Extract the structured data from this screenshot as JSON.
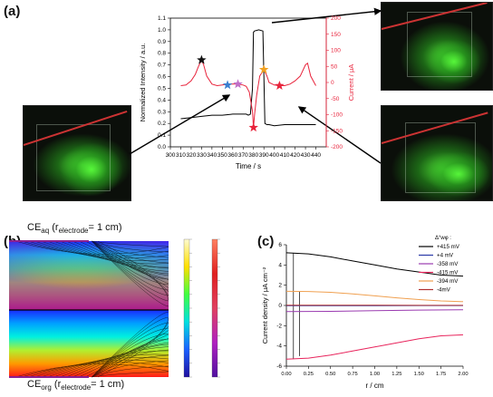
{
  "panels": {
    "a": "(a)",
    "b": "(b)",
    "c": "(c)"
  },
  "chart_data": [
    {
      "type": "line",
      "xlabel": "Time / s",
      "ylabel": "Normalized Intensity / a.u.",
      "y2label": "Current / μA",
      "xlim": [
        300,
        450
      ],
      "ylim": [
        0.0,
        1.1
      ],
      "y2lim": [
        -200,
        200
      ],
      "x_ticks": [
        300,
        310,
        320,
        330,
        340,
        350,
        360,
        370,
        380,
        390,
        400,
        410,
        420,
        430,
        440
      ],
      "y_ticks": [
        0.0,
        0.1,
        0.2,
        0.3,
        0.4,
        0.5,
        0.6,
        0.7,
        0.8,
        0.9,
        1.0,
        1.1
      ],
      "y2_ticks": [
        -200,
        -150,
        -100,
        -50,
        0,
        50,
        100,
        150,
        200
      ],
      "series": [
        {
          "axis": "left",
          "color": "#000000",
          "x": [
            310,
            320,
            330,
            340,
            350,
            360,
            365,
            370,
            373,
            375,
            377,
            379,
            380,
            381,
            385,
            389,
            390,
            391,
            393,
            395,
            400,
            410,
            420,
            430,
            440
          ],
          "y": [
            0.24,
            0.25,
            0.26,
            0.27,
            0.27,
            0.28,
            0.28,
            0.28,
            0.28,
            0.27,
            0.28,
            0.5,
            0.98,
            0.99,
            1.0,
            0.99,
            0.6,
            0.2,
            0.19,
            0.19,
            0.18,
            0.19,
            0.19,
            0.19,
            0.19
          ]
        },
        {
          "axis": "right",
          "color": "#e8243c",
          "x": [
            310,
            315,
            320,
            324,
            327,
            330,
            332,
            335,
            340,
            345,
            350,
            355,
            360,
            365,
            370,
            373,
            376,
            379,
            380,
            381,
            383,
            386,
            390,
            393,
            395,
            400,
            405,
            410,
            415,
            420,
            425,
            430,
            432,
            435,
            440
          ],
          "y": [
            -10,
            -8,
            5,
            25,
            50,
            70,
            55,
            20,
            -5,
            -10,
            -8,
            -5,
            -5,
            -5,
            -8,
            -12,
            -30,
            -90,
            -140,
            -100,
            -40,
            20,
            40,
            20,
            0,
            -8,
            -10,
            -10,
            -5,
            5,
            20,
            55,
            60,
            20,
            -10
          ]
        }
      ],
      "markers": [
        {
          "x": 330,
          "y2": 70,
          "color": "#111111"
        },
        {
          "x": 355,
          "y2": -8,
          "color": "#3a7fd0"
        },
        {
          "x": 365,
          "y2": -5,
          "color": "#c070c8"
        },
        {
          "x": 380,
          "y2": -140,
          "color": "#e8243c"
        },
        {
          "x": 390,
          "y2": 40,
          "color": "#f0a020"
        },
        {
          "x": 405,
          "y2": -10,
          "color": "#e8243c"
        }
      ]
    },
    {
      "type": "line",
      "xlabel": "r / cm",
      "ylabel": "Current density / μA cm⁻²",
      "xlim": [
        0,
        2.0
      ],
      "ylim": [
        -6,
        6
      ],
      "x_ticks": [
        0.0,
        0.25,
        0.5,
        0.75,
        1.0,
        1.25,
        1.5,
        1.75,
        2.0
      ],
      "x_tick_labels": [
        "0.00",
        "0.25",
        "0.50",
        "0.75",
        "1.00",
        "1.25",
        "1.50",
        "1.75",
        "2.00"
      ],
      "y_ticks": [
        -6,
        -4,
        -2,
        0,
        2,
        4,
        6
      ],
      "legend_title": "Δ°wφ :",
      "legend_position": "top-right",
      "series": [
        {
          "name": "+415 mV",
          "color": "#000000",
          "x": [
            0,
            0.25,
            0.5,
            0.75,
            1.0,
            1.25,
            1.5,
            1.75,
            2.0
          ],
          "y": [
            5.2,
            5.1,
            4.8,
            4.4,
            4.0,
            3.6,
            3.3,
            3.0,
            2.9
          ]
        },
        {
          "name": "+4 mV",
          "color": "#2a3aa8",
          "x": [
            0,
            0.5,
            1.0,
            1.5,
            2.0
          ],
          "y": [
            -0.02,
            -0.02,
            -0.02,
            -0.01,
            -0.01
          ]
        },
        {
          "name": "-358 mV",
          "color": "#9a3ab0",
          "x": [
            0,
            0.5,
            1.0,
            1.5,
            2.0
          ],
          "y": [
            -0.6,
            -0.58,
            -0.52,
            -0.46,
            -0.42
          ]
        },
        {
          "name": "-415 mV",
          "color": "#e8245c",
          "x": [
            0,
            0.25,
            0.5,
            0.75,
            1.0,
            1.25,
            1.5,
            1.75,
            2.0
          ],
          "y": [
            -5.3,
            -5.2,
            -4.9,
            -4.5,
            -4.1,
            -3.7,
            -3.3,
            -3.0,
            -2.9
          ]
        },
        {
          "name": "-394 mV",
          "color": "#f0a050",
          "x": [
            0,
            0.25,
            0.5,
            0.75,
            1.0,
            1.25,
            1.5,
            1.75,
            2.0
          ],
          "y": [
            1.4,
            1.38,
            1.3,
            1.15,
            0.95,
            0.75,
            0.58,
            0.45,
            0.38
          ]
        },
        {
          "name": "-4mV",
          "color": "#b03030",
          "x": [
            0,
            0.5,
            1.0,
            1.5,
            2.0
          ],
          "y": [
            0.02,
            0.02,
            0.02,
            0.01,
            0.01
          ]
        }
      ]
    }
  ],
  "simulation": {
    "label_top_main": "CE",
    "label_top_sub": "aq",
    "label_top_rest": " (r",
    "label_top_sub2": "electrode",
    "label_top_end": "= 1 cm)",
    "label_bottom_main": "CE",
    "label_bottom_sub": "org",
    "label_bottom_rest": " (r",
    "label_bottom_sub2": "electrode",
    "label_bottom_end": "= 1 cm)",
    "colors": {
      "low": "#1a1aff",
      "mid": "#00ffcc",
      "high": "#ff2020"
    }
  }
}
